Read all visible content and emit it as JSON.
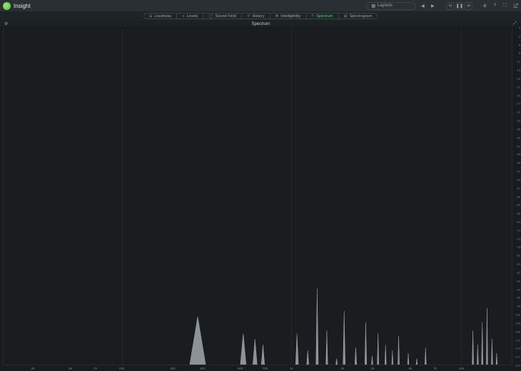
{
  "app": {
    "title": "Insight"
  },
  "titlebar": {
    "layouts_label": "Layouts",
    "icon_prev": "◀",
    "icon_next": "▶",
    "icon_clock": "⟲",
    "icon_pause": "❚❚",
    "icon_refresh": "⟳",
    "icon_settings": "⚙",
    "icon_help": "?",
    "icon_fullscreen": "⛶",
    "brand_mark": "iZ"
  },
  "tabs": [
    {
      "id": "loudness",
      "icon": "⊟",
      "label": "Loudness"
    },
    {
      "id": "levels",
      "icon": "≡",
      "label": "Levels"
    },
    {
      "id": "soundfield",
      "icon": "◯",
      "label": "Sound Field"
    },
    {
      "id": "history",
      "icon": "↺",
      "label": "History"
    },
    {
      "id": "intelligibility",
      "icon": "❋",
      "label": "Intelligibility"
    },
    {
      "id": "spectrum",
      "icon": "⩍",
      "label": "Spectrum",
      "active": true
    },
    {
      "id": "spectrogram",
      "icon": "▤",
      "label": "Spectrogram"
    }
  ],
  "panel": {
    "title": "Spectrum",
    "gear_icon": "⚙",
    "expand_icon": "⤢"
  },
  "spectrum": {
    "type": "spectrum",
    "x_log_min_hz": 20,
    "x_log_max_hz": 20000,
    "background_color": "#191d20",
    "grid_color": "#22272b",
    "peak_fill": "#8c9296",
    "peak_stroke": "#aeb3b7",
    "x_vgrids_hz": [
      100,
      1000,
      10000
    ],
    "x_ticks": [
      {
        "hz": 30,
        "label": "30"
      },
      {
        "hz": 50,
        "label": "50"
      },
      {
        "hz": 70,
        "label": "70"
      },
      {
        "hz": 100,
        "label": "100"
      },
      {
        "hz": 200,
        "label": "200"
      },
      {
        "hz": 300,
        "label": "300"
      },
      {
        "hz": 500,
        "label": "500"
      },
      {
        "hz": 700,
        "label": "700"
      },
      {
        "hz": 1000,
        "label": "1k"
      },
      {
        "hz": 2000,
        "label": "2k"
      },
      {
        "hz": 3000,
        "label": "3k"
      },
      {
        "hz": 5000,
        "label": "5k"
      },
      {
        "hz": 7000,
        "label": "7k"
      },
      {
        "hz": 10000,
        "label": "10k"
      }
    ],
    "y_min_db": -120,
    "y_max_db": 0,
    "y_tick_step": 3,
    "peaks": [
      {
        "hz": 280,
        "db": -103,
        "width_hz": 60
      },
      {
        "hz": 520,
        "db": -109,
        "width_hz": 40
      },
      {
        "hz": 610,
        "db": -111,
        "width_hz": 35
      },
      {
        "hz": 680,
        "db": -113,
        "width_hz": 30
      },
      {
        "hz": 1080,
        "db": -109,
        "width_hz": 40
      },
      {
        "hz": 1250,
        "db": -115,
        "width_hz": 35
      },
      {
        "hz": 1420,
        "db": -93,
        "width_hz": 45
      },
      {
        "hz": 1620,
        "db": -108,
        "width_hz": 40
      },
      {
        "hz": 1850,
        "db": -118,
        "width_hz": 40
      },
      {
        "hz": 2050,
        "db": -101,
        "width_hz": 60
      },
      {
        "hz": 2400,
        "db": -114,
        "width_hz": 60
      },
      {
        "hz": 2750,
        "db": -105,
        "width_hz": 70
      },
      {
        "hz": 3000,
        "db": -117,
        "width_hz": 60
      },
      {
        "hz": 3250,
        "db": -109,
        "width_hz": 70
      },
      {
        "hz": 3600,
        "db": -113,
        "width_hz": 70
      },
      {
        "hz": 3950,
        "db": -115,
        "width_hz": 70
      },
      {
        "hz": 4300,
        "db": -110,
        "width_hz": 90
      },
      {
        "hz": 4900,
        "db": -116,
        "width_hz": 90
      },
      {
        "hz": 5500,
        "db": -118,
        "width_hz": 100
      },
      {
        "hz": 6200,
        "db": -114,
        "width_hz": 120
      },
      {
        "hz": 11800,
        "db": -108,
        "width_hz": 250
      },
      {
        "hz": 12600,
        "db": -113,
        "width_hz": 250
      },
      {
        "hz": 13400,
        "db": -105,
        "width_hz": 280
      },
      {
        "hz": 14300,
        "db": -100,
        "width_hz": 300
      },
      {
        "hz": 15300,
        "db": -111,
        "width_hz": 300
      },
      {
        "hz": 16300,
        "db": -116,
        "width_hz": 280
      }
    ]
  }
}
